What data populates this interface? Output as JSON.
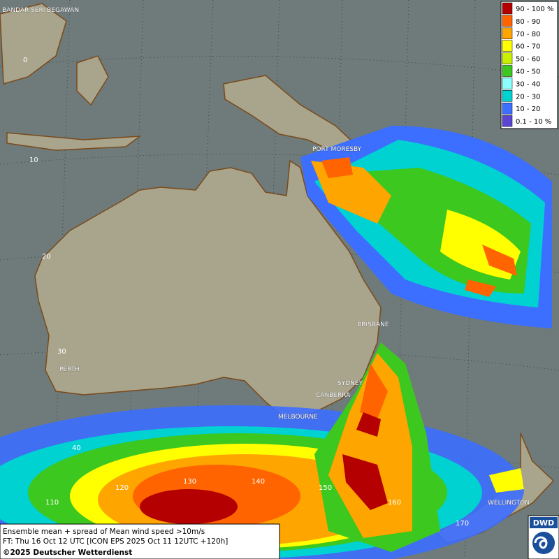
{
  "legend": {
    "items": [
      {
        "label": "90 - 100 %",
        "color": "#b40000"
      },
      {
        "label": "80 - 90",
        "color": "#ff6400"
      },
      {
        "label": "70 - 80",
        "color": "#ffa500"
      },
      {
        "label": "60 - 70",
        "color": "#ffff00"
      },
      {
        "label": "50 - 60",
        "color": "#c8f000"
      },
      {
        "label": "40 - 50",
        "color": "#3cc81e"
      },
      {
        "label": "30 - 40",
        "color": "#8cffff"
      },
      {
        "label": "20 - 30",
        "color": "#00d2d2"
      },
      {
        "label": "10 - 20",
        "color": "#3c6eff"
      },
      {
        "label": "0.1 - 10 %",
        "color": "#5a46d2"
      }
    ]
  },
  "cities": [
    "BANDAR SERI BEGAWAN",
    "PORT MORESBY",
    "BRISBANE",
    "PERTH",
    "SYDNEY",
    "CANBERRA",
    "MELBOURNE",
    "WELLINGTON"
  ],
  "latitudes": [
    "0",
    "10",
    "20",
    "30",
    "40"
  ],
  "longitudes": [
    "110",
    "120",
    "130",
    "140",
    "150",
    "160",
    "170"
  ],
  "footer": {
    "line1": "Ensemble mean + spread of Mean wind speed >10m/s",
    "line2": "FT: Thu 16 Oct 12 UTC [ICON EPS 2025 Oct 11 12UTC +120h]",
    "line3": "©2025 Deutscher Wetterdienst"
  },
  "logo": "DWD"
}
